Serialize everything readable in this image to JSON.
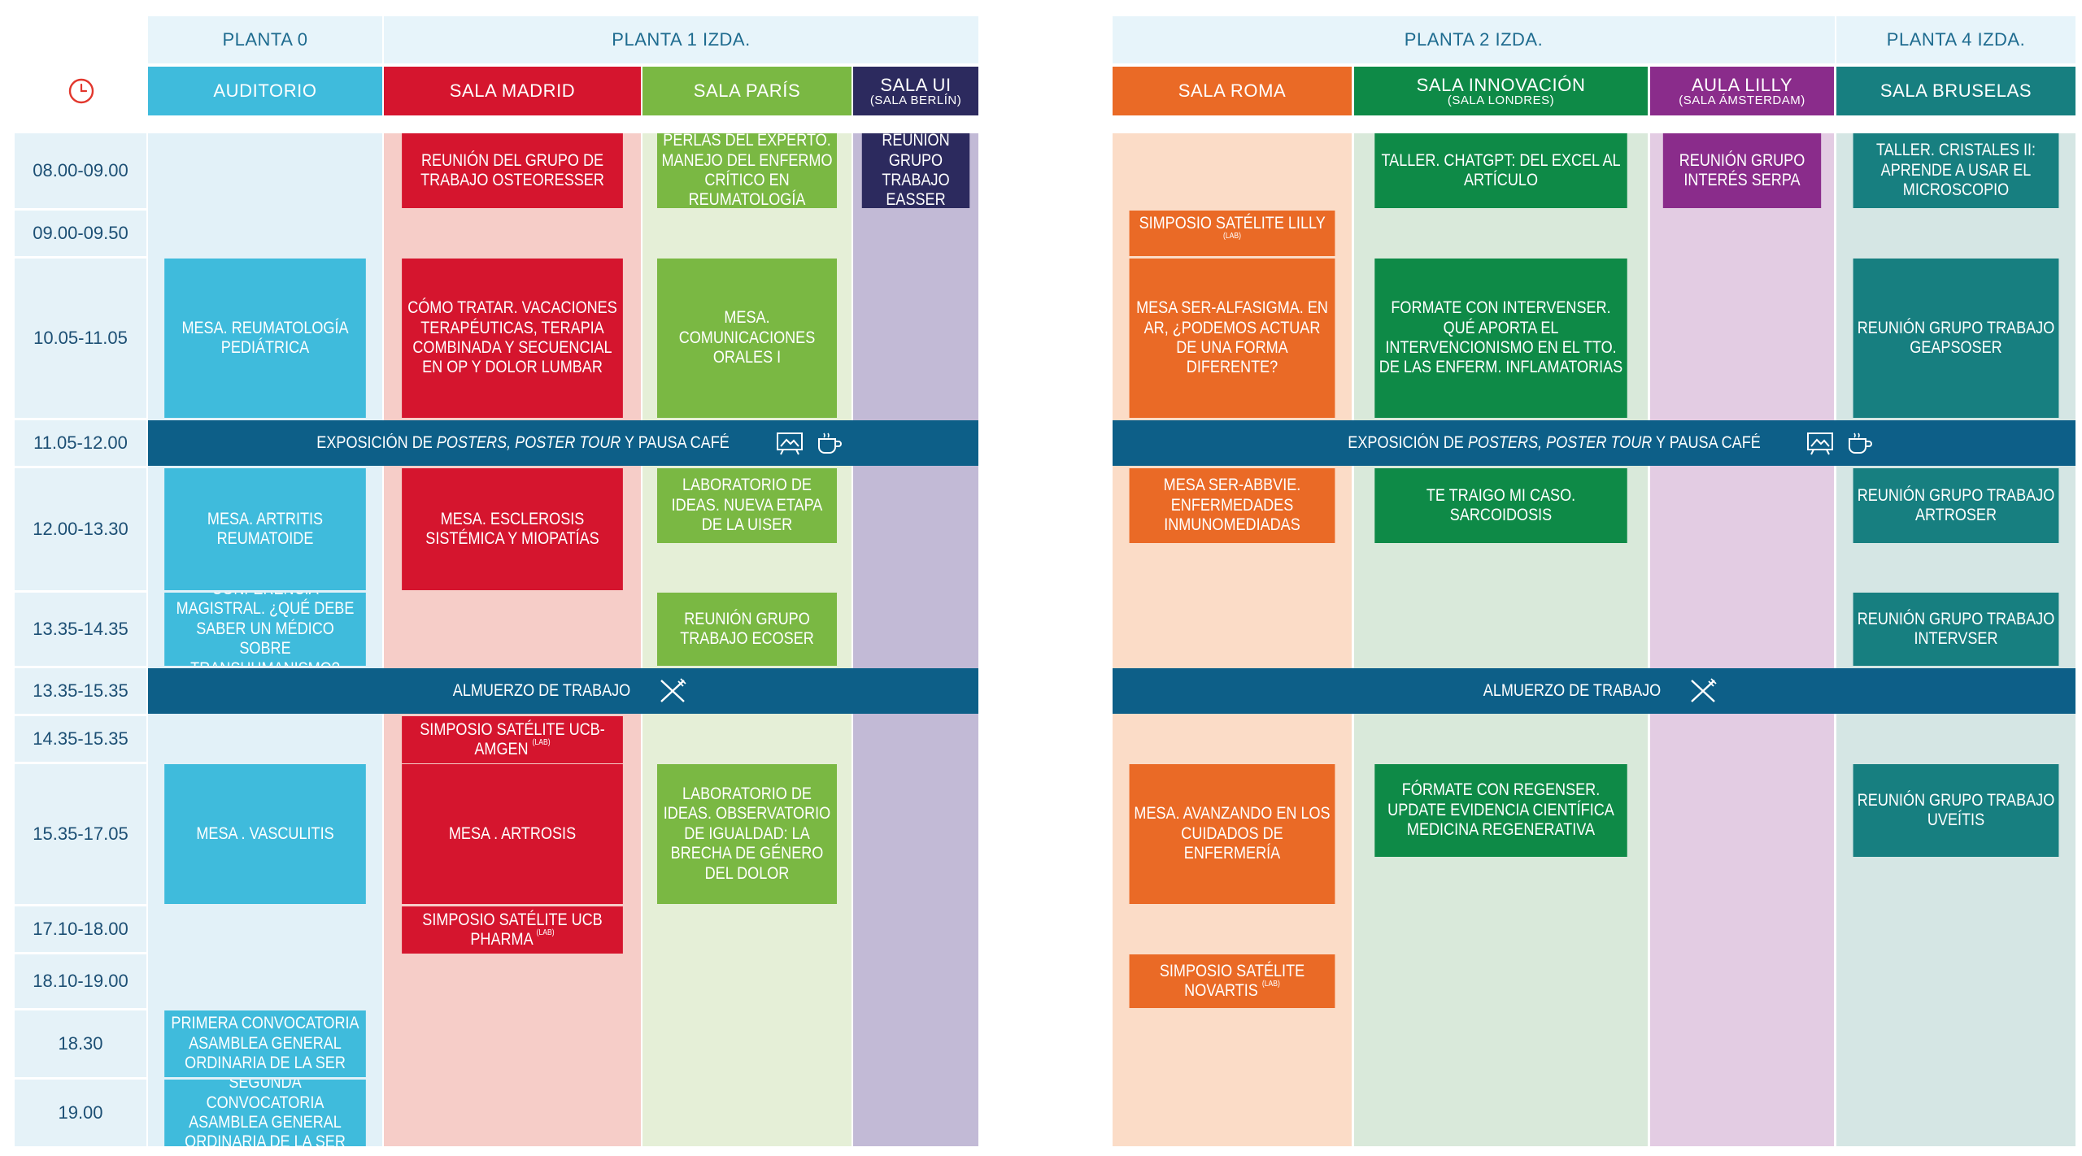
{
  "floors": {
    "left": [
      "PLANTA 0",
      "PLANTA 1 IZDA."
    ],
    "right": [
      "PLANTA 2 IZDA.",
      "PLANTA 4 IZDA."
    ]
  },
  "rooms": {
    "auditorio": "AUDITORIO",
    "madrid": "SALA MADRID",
    "paris": "SALA PARÍS",
    "ui": "SALA UI",
    "ui_sub": "(SALA BERLÍN)",
    "roma": "SALA ROMA",
    "innovacion": "SALA INNOVACIÓN",
    "innovacion_sub": "(SALA LONDRES)",
    "lilly": "AULA LILLY",
    "lilly_sub": "(SALA ÁMSTERDAM)",
    "bruselas": "SALA BRUSELAS"
  },
  "times": [
    "08.00-09.00",
    "09.00-09.50",
    "10.05-11.05",
    "11.05-12.00",
    "12.00-13.30",
    "13.35-14.35",
    "13.35-15.35",
    "14.35-15.35",
    "15.35-17.05",
    "17.10-18.00",
    "18.10-19.00",
    "18.30",
    "19.00"
  ],
  "bands": {
    "poster_pre": "EXPOSICIÓN DE ",
    "poster_em1": "POSTERS, POSTER TOUR",
    "poster_post": " Y PAUSA CAFÉ",
    "lunch": "ALMUERZO DE TRABAJO"
  },
  "events": {
    "madrid_1": "REUNIÓN DEL GRUPO DE TRABAJO OSTEORESSER",
    "paris_1": "PERLAS DEL EXPERTO. MANEJO DEL ENFERMO CRÍTICO EN REUMATOLOGÍA",
    "ui_1": "REUNIÓN GRUPO TRABAJO EASSER",
    "aud_2": "MESA. REUMATOLOGÍA PEDIÁTRICA",
    "madrid_2": "CÓMO TRATAR. VACACIONES TERAPÉUTICAS, TERAPIA COMBINADA Y SECUENCIAL EN OP Y DOLOR LUMBAR",
    "paris_2": "MESA. COMUNICACIONES ORALES I",
    "aud_3": "MESA. ARTRITIS REUMATOIDE",
    "madrid_3": "MESA. ESCLEROSIS SISTÉMICA Y MIOPATÍAS",
    "paris_3": "LABORATORIO DE IDEAS. NUEVA ETAPA DE LA UISER",
    "aud_4": "CONFERENCIA MAGISTRAL. ¿QUÉ DEBE SABER UN MÉDICO SOBRE TRANSHUMANISMO?",
    "paris_4": "REUNIÓN GRUPO TRABAJO ECOSER",
    "madrid_5": "SIMPOSIO SATÉLITE UCB-AMGEN",
    "aud_6": "MESA . VASCULITIS",
    "madrid_6": "MESA . ARTROSIS",
    "paris_6": "LABORATORIO DE IDEAS. OBSERVATORIO DE IGUALDAD: LA BRECHA DE GÉNERO DEL DOLOR",
    "madrid_7": "SIMPOSIO SATÉLITE UCB PHARMA",
    "aud_8": "PRIMERA CONVOCATORIA ASAMBLEA GENERAL ORDINARIA DE LA SER",
    "aud_9": "SEGUNDA CONVOCATORIA ASAMBLEA GENERAL ORDINARIA DE LA SER",
    "innov_1": "TALLER. CHATGPT: DEL EXCEL AL ARTÍCULO",
    "lilly_1": "REUNIÓN GRUPO INTERÉS SERPA",
    "brus_1": "TALLER. CRISTALES II: APRENDE A USAR EL MICROSCOPIO",
    "roma_2": "SIMPOSIO SATÉLITE LILLY",
    "roma_3": "MESA SER-ALFASIGMA. EN AR, ¿PODEMOS ACTUAR DE UNA FORMA DIFERENTE?",
    "innov_3": "FORMATE CON INTERVENSER. QUÉ APORTA EL INTERVENCIONISMO EN EL TTO. DE LAS ENFERM. INFLAMATORIAS",
    "brus_3": "REUNIÓN GRUPO TRABAJO GEAPSOSER",
    "roma_4": "MESA SER-ABBVIE. ENFERMEDADES INMUNOMEDIADAS",
    "innov_4": "TE TRAIGO MI CASO. SARCOIDOSIS",
    "brus_4": "REUNIÓN GRUPO TRABAJO ARTROSER",
    "brus_5": "REUNIÓN GRUPO TRABAJO INTERVSER",
    "roma_6": "MESA. AVANZANDO EN LOS CUIDADOS DE ENFERMERÍA",
    "innov_6": "FÓRMATE CON REGENSER. UPDATE EVIDENCIA CIENTÍFICA MEDICINA REGENERATIVA",
    "brus_6": "REUNIÓN GRUPO TRABAJO UVEÍTIS",
    "roma_7": "SIMPOSIO SATÉLITE NOVARTIS"
  },
  "lab_mark": "(LAB)",
  "icons": {
    "clock": "clock-icon",
    "poster": "poster-board-icon",
    "coffee": "coffee-cup-icon",
    "lunch": "fork-knife-icon"
  },
  "colors": {
    "auditorio": "#3fbbdc",
    "madrid": "#d5152e",
    "paris": "#7ab843",
    "ui": "#2c2a5e",
    "roma": "#ea6a26",
    "innovacion": "#0e8a47",
    "lilly": "#8a2c8b",
    "bruselas": "#177f80",
    "band": "#0d5f88",
    "time_text": "#1c4f74"
  }
}
